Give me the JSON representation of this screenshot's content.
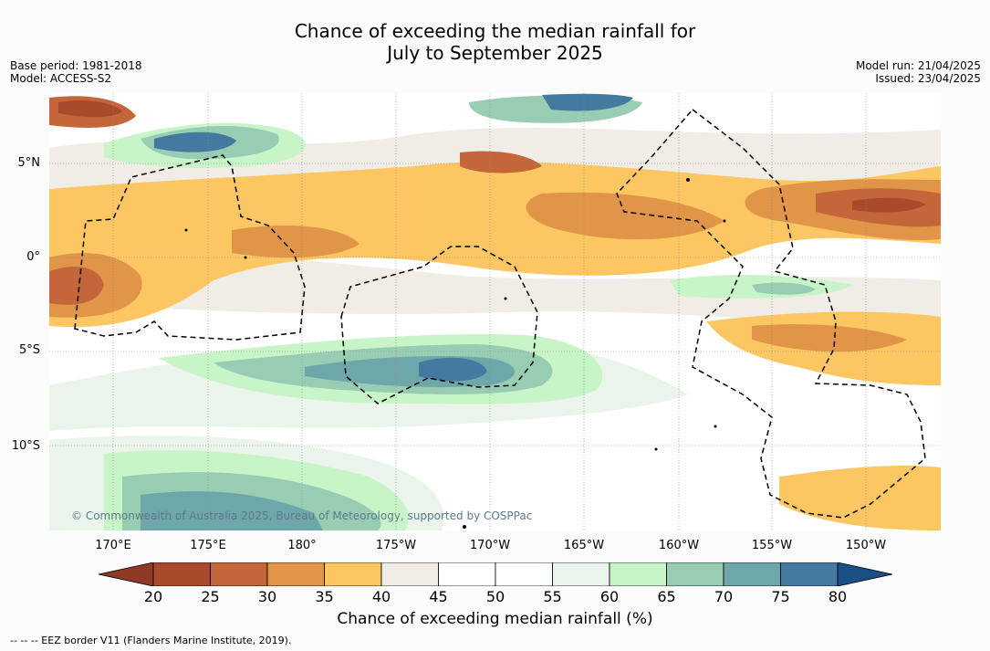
{
  "title_line1": "Chance of exceeding the median rainfall for",
  "title_line2": "July to September 2025",
  "meta_left": [
    "Base period: 1981-2018",
    "Model: ACCESS-S2"
  ],
  "meta_right": [
    "Model run: 21/04/2025",
    "Issued: 23/04/2025"
  ],
  "lat_labels": [
    "5°N",
    "0°",
    "5°S",
    "10°S"
  ],
  "lon_labels": [
    "170°E",
    "175°E",
    "180°",
    "175°W",
    "170°W",
    "165°W",
    "160°W",
    "155°W",
    "150°W"
  ],
  "copyright": "© Commonwealth of Australia 2025, Bureau of Meteorology, supported by COSPPac",
  "colorbar": {
    "ticks": [
      "20",
      "25",
      "30",
      "35",
      "40",
      "45",
      "50",
      "55",
      "60",
      "65",
      "70",
      "75",
      "80"
    ],
    "colors": [
      "#a84b2d",
      "#c4663a",
      "#e09548",
      "#fcc762",
      "#f0ece6",
      "#ffffff",
      "#ffffff",
      "#eaf4ea",
      "#c8f5c8",
      "#98cdb4",
      "#6ea7aa",
      "#457aa0"
    ],
    "under_color": "#8f3a24",
    "over_color": "#1a4f86",
    "label": "Chance of exceeding median rainfall (%)"
  },
  "footer": "-- -- -- EEZ border V11 (Flanders Marine Institute, 2019)."
}
